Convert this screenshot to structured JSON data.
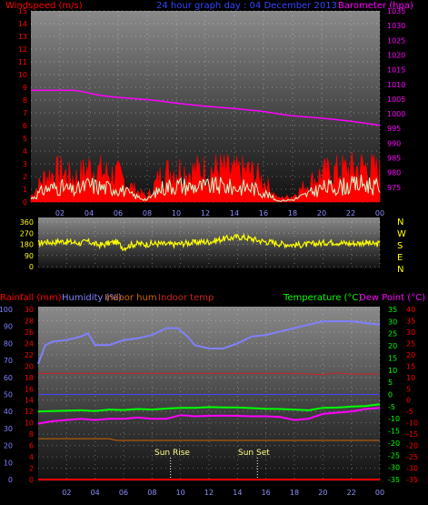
{
  "colors": {
    "wind_label": "#ff0000",
    "title": "#3344ff",
    "barometer": "#ff00ff",
    "humidity": "#8080ff",
    "indoor_hum": "#cc6600",
    "indoor_temp": "#cc2222",
    "temperature": "#00ff00",
    "dew_point": "#ff00ff",
    "rainfall": "#ff0000",
    "wind_dir": "#ffff00",
    "gust": "#ff0000",
    "wind_avg": "#ccffcc"
  },
  "top_panel": {
    "left_title": "Windspeed (m/s)",
    "center_title": "24 hour graph day : 04 December 2013",
    "right_title": "Barometer (hpa)"
  },
  "direction_panel": {
    "compass_labels": [
      "N",
      "W",
      "S",
      "E",
      "N"
    ]
  },
  "bottom_panel": {
    "rainfall_label": "Rainfall (mm)",
    "humidity_label": "Humidity (%)",
    "indoor_hum_label": "Indoor hum",
    "indoor_temp_label": "Indoor temp",
    "temperature_label": "Temperature (°C)",
    "dew_point_label": "Dew Point (°C)",
    "sun_rise_label": "Sun Rise",
    "sun_set_label": "Sun Set",
    "sun_rise_hour": 9.3,
    "sun_set_hour": 15.4
  },
  "chart_data": [
    {
      "type": "line",
      "title": "24 hour graph day : 04 December 2013",
      "x_ticks": [
        "02",
        "04",
        "06",
        "08",
        "10",
        "12",
        "14",
        "16",
        "18",
        "20",
        "22",
        "00"
      ],
      "y_left": {
        "label": "Windspeed (m/s)",
        "range": [
          0,
          15
        ],
        "ticks": [
          0,
          1,
          2,
          3,
          4,
          5,
          6,
          7,
          8,
          9,
          10,
          11,
          12,
          13,
          14,
          15
        ]
      },
      "y_right": {
        "label": "Barometer (hpa)",
        "range": [
          970,
          1035
        ],
        "ticks": [
          975,
          980,
          985,
          990,
          995,
          1000,
          1005,
          1010,
          1015,
          1020,
          1025,
          1030,
          1035
        ]
      },
      "series": [
        {
          "name": "Barometer (hpa)",
          "axis": "right",
          "x": [
            0,
            3,
            3.6,
            4.5,
            5.5,
            7,
            8.5,
            10,
            12,
            14,
            16,
            17,
            18,
            20,
            21,
            22,
            23,
            23.6,
            24
          ],
          "y": [
            1008,
            1008,
            1007.5,
            1006.5,
            1005.8,
            1005.2,
            1004.6,
            1003.6,
            1002.6,
            1001.8,
            1000.8,
            1000,
            999.3,
            998.5,
            998,
            997.5,
            996.8,
            996.4,
            996
          ]
        },
        {
          "name": "Wind gust",
          "axis": "left",
          "x": [
            0,
            1,
            2,
            3,
            4,
            5,
            6,
            7,
            8,
            9,
            10,
            11,
            12,
            13,
            14,
            15,
            16,
            17,
            18,
            19,
            20,
            21,
            22,
            23,
            24
          ],
          "y": [
            0.5,
            2.2,
            2.6,
            2.0,
            2.9,
            2.5,
            2.3,
            1.2,
            0.4,
            2.4,
            2.8,
            2.6,
            2.7,
            2.8,
            2.5,
            2.6,
            1.8,
            0.3,
            0.5,
            1.5,
            2.4,
            2.6,
            2.8,
            3.0,
            2.5
          ]
        },
        {
          "name": "Wind average",
          "axis": "left",
          "x": [
            0,
            1,
            2,
            3,
            4,
            5,
            6,
            7,
            8,
            9,
            10,
            11,
            12,
            13,
            14,
            15,
            16,
            17,
            18,
            19,
            20,
            21,
            22,
            23,
            24
          ],
          "y": [
            0.3,
            1.2,
            1.4,
            1.0,
            1.6,
            1.3,
            1.3,
            0.6,
            0.2,
            1.3,
            1.6,
            1.4,
            1.4,
            1.5,
            1.3,
            1.4,
            0.9,
            0.1,
            0.2,
            0.7,
            1.3,
            1.4,
            1.5,
            1.7,
            1.3
          ]
        }
      ]
    },
    {
      "type": "line",
      "y_range": [
        0,
        360
      ],
      "y_ticks": [
        0,
        90,
        180,
        270,
        360
      ],
      "x_ticks": [
        "02",
        "04",
        "06",
        "08",
        "10",
        "12",
        "14",
        "16",
        "18",
        "20",
        "22",
        "00"
      ],
      "series": [
        {
          "name": "Wind direction",
          "x": [
            0,
            0.5,
            1,
            1.5,
            2,
            2.5,
            3,
            3.5,
            4,
            4.5,
            5,
            5.5,
            6,
            6.5,
            7,
            7.5,
            8,
            8.5,
            9,
            9.5,
            10,
            10.5,
            11,
            11.5,
            12,
            12.5,
            13,
            13.5,
            14,
            14.5,
            15,
            15.5,
            16,
            16.5,
            17,
            17.5,
            18,
            18.5,
            19,
            19.5,
            20,
            20.5,
            21,
            21.5,
            22,
            22.5,
            23,
            23.5,
            24
          ],
          "y": [
            185,
            200,
            195,
            205,
            200,
            195,
            190,
            205,
            180,
            175,
            190,
            200,
            150,
            175,
            185,
            180,
            185,
            185,
            180,
            180,
            185,
            190,
            195,
            200,
            200,
            210,
            225,
            230,
            240,
            235,
            225,
            210,
            200,
            195,
            185,
            180,
            175,
            175,
            180,
            185,
            190,
            200,
            195,
            190,
            185,
            190,
            195,
            180,
            185
          ]
        }
      ]
    },
    {
      "type": "line",
      "x_ticks": [
        "02",
        "04",
        "06",
        "08",
        "10",
        "12",
        "14",
        "16",
        "18",
        "20",
        "22",
        "00"
      ],
      "y_left": {
        "label": "Humidity (%)",
        "range": [
          0,
          100
        ],
        "ticks": [
          0,
          10,
          20,
          30,
          40,
          50,
          60,
          70,
          80,
          90,
          100
        ]
      },
      "y_left_inner": {
        "label": "Rainfall (mm)",
        "range": [
          0,
          30
        ],
        "ticks": [
          0,
          2,
          4,
          6,
          8,
          10,
          12,
          14,
          16,
          18,
          20,
          22,
          24,
          26,
          28,
          30
        ]
      },
      "y_right": {
        "label": "Temperature (°C)",
        "range": [
          -35,
          35
        ],
        "ticks": [
          -35,
          -30,
          -25,
          -20,
          -15,
          -10,
          -5,
          0,
          5,
          10,
          15,
          20,
          25,
          30,
          35
        ]
      },
      "y_right_outer": {
        "label": "Dew Point (°C)",
        "range": [
          -35,
          40
        ],
        "ticks": [
          -35,
          -30,
          -25,
          -20,
          -15,
          -10,
          -5,
          0,
          5,
          10,
          15,
          20,
          25,
          30,
          35,
          40
        ]
      },
      "series": [
        {
          "name": "Humidity (%)",
          "axis": "left",
          "x": [
            0,
            0.5,
            1,
            2,
            3,
            3.5,
            4,
            5,
            6,
            7,
            8,
            9,
            9.8,
            10.5,
            11,
            12,
            13,
            14,
            15,
            16,
            17,
            18,
            19,
            20,
            21,
            22,
            23,
            24
          ],
          "y": [
            68,
            79,
            81,
            82,
            84,
            86,
            79,
            79,
            82,
            83,
            85,
            89,
            89,
            84,
            79,
            77,
            77,
            80,
            84,
            85,
            87,
            89,
            91,
            93,
            93,
            93,
            92,
            91
          ]
        },
        {
          "name": "Temperature (°C)",
          "axis": "right",
          "x": [
            0,
            1,
            2,
            3,
            4,
            5,
            6,
            7,
            8,
            9,
            10,
            11,
            12,
            13,
            14,
            15,
            16,
            17,
            18,
            19,
            20,
            21,
            22,
            23,
            24
          ],
          "y": [
            -7,
            -6.8,
            -6.7,
            -6.5,
            -6.8,
            -6.2,
            -6.4,
            -6,
            -6.2,
            -5.8,
            -5.5,
            -5.5,
            -5.2,
            -5.3,
            -5.4,
            -5.6,
            -5.9,
            -6,
            -6.2,
            -6.5,
            -5.5,
            -5.4,
            -5,
            -4.8,
            -4
          ]
        },
        {
          "name": "Dew Point (°C)",
          "axis": "right",
          "x": [
            0,
            1,
            2,
            3,
            4,
            5,
            6,
            7,
            8,
            9,
            10,
            11,
            12,
            13,
            14,
            15,
            16,
            17,
            18,
            19,
            20,
            21,
            22,
            23,
            24
          ],
          "y": [
            -12,
            -11,
            -10.5,
            -10,
            -10.5,
            -10,
            -10,
            -9.5,
            -10,
            -10,
            -8.5,
            -9,
            -8.8,
            -8.7,
            -8.8,
            -9,
            -9,
            -9.3,
            -10.5,
            -10,
            -8,
            -7.5,
            -7,
            -6,
            -5.5
          ]
        },
        {
          "name": "Indoor temp",
          "axis": "left_inner",
          "x": [
            0,
            12,
            18,
            20,
            21,
            22,
            24
          ],
          "y": [
            18.7,
            18.7,
            18.7,
            18.5,
            18.8,
            18.6,
            18.6
          ]
        },
        {
          "name": "Indoor hum",
          "axis": "left",
          "x": [
            0,
            5,
            5.5,
            24
          ],
          "y": [
            24,
            24,
            23,
            23
          ]
        },
        {
          "name": "Rainfall (mm)",
          "axis": "left_inner",
          "x": [
            0,
            24
          ],
          "y": [
            0,
            0
          ]
        }
      ]
    }
  ]
}
